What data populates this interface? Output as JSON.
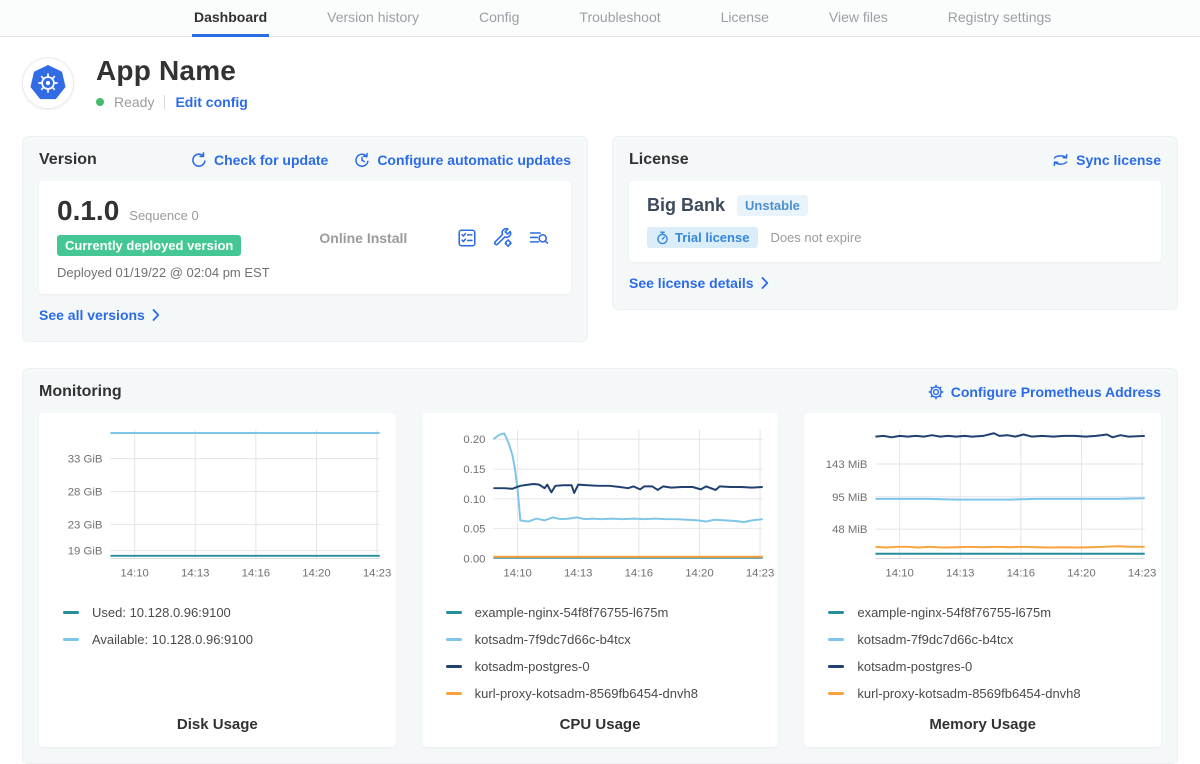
{
  "nav": {
    "tabs": [
      {
        "label": "Dashboard",
        "active": true
      },
      {
        "label": "Version history",
        "active": false
      },
      {
        "label": "Config",
        "active": false
      },
      {
        "label": "Troubleshoot",
        "active": false
      },
      {
        "label": "License",
        "active": false
      },
      {
        "label": "View files",
        "active": false
      },
      {
        "label": "Registry settings",
        "active": false
      }
    ]
  },
  "header": {
    "app_name": "App Name",
    "status": "Ready",
    "edit_config_label": "Edit config"
  },
  "version_card": {
    "title": "Version",
    "check_for_update_label": "Check for update",
    "configure_updates_label": "Configure automatic updates",
    "version_number": "0.1.0",
    "sequence_label": "Sequence 0",
    "deployed_badge": "Currently deployed version",
    "deployed_at": "Deployed 01/19/22 @ 02:04 pm EST",
    "install_type": "Online Install",
    "icons": [
      "preflight-checks-icon",
      "edit-config-icon",
      "view-logs-icon"
    ],
    "see_all_versions_label": "See all versions"
  },
  "license_card": {
    "title": "License",
    "sync_license_label": "Sync license",
    "customer_name": "Big Bank",
    "channel_badge": "Unstable",
    "license_type_badge": "Trial license",
    "expiry_text": "Does not expire",
    "see_details_label": "See license details"
  },
  "monitoring": {
    "title": "Monitoring",
    "configure_prometheus_label": "Configure Prometheus Address"
  },
  "colors": {
    "link-blue": "#2c6be6",
    "k8s-blue": "#326ce5",
    "status-green": "#44bb66",
    "badge-green": "#44c794",
    "series-teal": "#268e9e",
    "series-lightblue": "#7ec5e8",
    "series-navy": "#20406f",
    "series-orange": "#f9a13c"
  },
  "chart_data": [
    {
      "type": "line",
      "title": "Disk Usage",
      "ylim": [
        17.8,
        37.4
      ],
      "yticks": [
        {
          "value": 19,
          "label": "19 GiB"
        },
        {
          "value": 23,
          "label": "23 GiB"
        },
        {
          "value": 28,
          "label": "28 GiB"
        },
        {
          "value": 33,
          "label": "33 GiB"
        }
      ],
      "xticks": [
        {
          "pos": 0.09,
          "label": "14:10"
        },
        {
          "pos": 0.315,
          "label": "14:13"
        },
        {
          "pos": 0.54,
          "label": "14:16"
        },
        {
          "pos": 0.765,
          "label": "14:20"
        },
        {
          "pos": 0.99,
          "label": "14:23"
        }
      ],
      "series": [
        {
          "name": "Used: 10.128.0.96:9100",
          "color": "series-teal",
          "points": [
            [
              0,
              18.2
            ],
            [
              1,
              18.2
            ]
          ]
        },
        {
          "name": "Available: 10.128.0.96:9100",
          "color": "series-lightblue",
          "points": [
            [
              0,
              36.9
            ],
            [
              1,
              36.9
            ]
          ]
        }
      ]
    },
    {
      "type": "line",
      "title": "CPU Usage",
      "ylim": [
        0,
        0.216
      ],
      "yticks": [
        {
          "value": 0.0,
          "label": "0.00"
        },
        {
          "value": 0.05,
          "label": "0.05"
        },
        {
          "value": 0.1,
          "label": "0.10"
        },
        {
          "value": 0.15,
          "label": "0.15"
        },
        {
          "value": 0.2,
          "label": "0.20"
        }
      ],
      "xticks": [
        {
          "pos": 0.09,
          "label": "14:10"
        },
        {
          "pos": 0.315,
          "label": "14:13"
        },
        {
          "pos": 0.54,
          "label": "14:16"
        },
        {
          "pos": 0.765,
          "label": "14:20"
        },
        {
          "pos": 0.99,
          "label": "14:23"
        }
      ],
      "series": [
        {
          "name": "example-nginx-54f8f76755-l675m",
          "color": "series-teal",
          "points": [
            [
              0,
              0.0015
            ],
            [
              1,
              0.0015
            ]
          ]
        },
        {
          "name": "kotsadm-7f9dc7d66c-b4tcx",
          "color": "series-lightblue",
          "points": [
            [
              0,
              0.2
            ],
            [
              0.02,
              0.207
            ],
            [
              0.04,
              0.21
            ],
            [
              0.055,
              0.195
            ],
            [
              0.07,
              0.175
            ],
            [
              0.08,
              0.15
            ],
            [
              0.09,
              0.115
            ],
            [
              0.1,
              0.064
            ],
            [
              0.13,
              0.062
            ],
            [
              0.16,
              0.067
            ],
            [
              0.19,
              0.064
            ],
            [
              0.22,
              0.069
            ],
            [
              0.25,
              0.066
            ],
            [
              0.28,
              0.067
            ],
            [
              0.31,
              0.069
            ],
            [
              0.34,
              0.066
            ],
            [
              0.37,
              0.067
            ],
            [
              0.4,
              0.066
            ],
            [
              0.44,
              0.067
            ],
            [
              0.48,
              0.066
            ],
            [
              0.52,
              0.067
            ],
            [
              0.56,
              0.066
            ],
            [
              0.6,
              0.067
            ],
            [
              0.64,
              0.066
            ],
            [
              0.68,
              0.066
            ],
            [
              0.72,
              0.065
            ],
            [
              0.76,
              0.064
            ],
            [
              0.79,
              0.062
            ],
            [
              0.82,
              0.065
            ],
            [
              0.86,
              0.064
            ],
            [
              0.9,
              0.063
            ],
            [
              0.93,
              0.061
            ],
            [
              0.96,
              0.064
            ],
            [
              1,
              0.066
            ]
          ]
        },
        {
          "name": "kotsadm-postgres-0",
          "color": "series-navy",
          "points": [
            [
              0,
              0.118
            ],
            [
              0.04,
              0.118
            ],
            [
              0.07,
              0.117
            ],
            [
              0.1,
              0.122
            ],
            [
              0.13,
              0.124
            ],
            [
              0.15,
              0.125
            ],
            [
              0.17,
              0.124
            ],
            [
              0.19,
              0.118
            ],
            [
              0.2,
              0.124
            ],
            [
              0.215,
              0.111
            ],
            [
              0.23,
              0.122
            ],
            [
              0.26,
              0.123
            ],
            [
              0.29,
              0.123
            ],
            [
              0.3,
              0.11
            ],
            [
              0.315,
              0.124
            ],
            [
              0.35,
              0.123
            ],
            [
              0.39,
              0.122
            ],
            [
              0.43,
              0.122
            ],
            [
              0.47,
              0.12
            ],
            [
              0.5,
              0.118
            ],
            [
              0.52,
              0.121
            ],
            [
              0.545,
              0.116
            ],
            [
              0.56,
              0.121
            ],
            [
              0.59,
              0.121
            ],
            [
              0.61,
              0.115
            ],
            [
              0.63,
              0.121
            ],
            [
              0.66,
              0.119
            ],
            [
              0.7,
              0.12
            ],
            [
              0.74,
              0.12
            ],
            [
              0.77,
              0.116
            ],
            [
              0.79,
              0.121
            ],
            [
              0.825,
              0.115
            ],
            [
              0.84,
              0.121
            ],
            [
              0.88,
              0.12
            ],
            [
              0.92,
              0.12
            ],
            [
              0.96,
              0.119
            ],
            [
              1,
              0.12
            ]
          ]
        },
        {
          "name": "kurl-proxy-kotsadm-8569fb6454-dnvh8",
          "color": "series-orange",
          "points": [
            [
              0,
              0.003
            ],
            [
              1,
              0.003
            ]
          ]
        }
      ]
    },
    {
      "type": "line",
      "title": "Memory Usage",
      "ylim": [
        5,
        193
      ],
      "yticks": [
        {
          "value": 48,
          "label": "48 MiB"
        },
        {
          "value": 95,
          "label": "95 MiB"
        },
        {
          "value": 143,
          "label": "143 MiB"
        }
      ],
      "xticks": [
        {
          "pos": 0.09,
          "label": "14:10"
        },
        {
          "pos": 0.315,
          "label": "14:13"
        },
        {
          "pos": 0.54,
          "label": "14:16"
        },
        {
          "pos": 0.765,
          "label": "14:20"
        },
        {
          "pos": 0.99,
          "label": "14:23"
        }
      ],
      "series": [
        {
          "name": "example-nginx-54f8f76755-l675m",
          "color": "series-teal",
          "points": [
            [
              0,
              12
            ],
            [
              1,
              12
            ]
          ]
        },
        {
          "name": "kotsadm-7f9dc7d66c-b4tcx",
          "color": "series-lightblue",
          "points": [
            [
              0,
              92
            ],
            [
              0.1,
              92
            ],
            [
              0.2,
              92
            ],
            [
              0.3,
              91
            ],
            [
              0.4,
              91
            ],
            [
              0.5,
              91
            ],
            [
              0.6,
              92
            ],
            [
              0.7,
              92
            ],
            [
              0.8,
              92
            ],
            [
              0.9,
              92
            ],
            [
              1,
              93
            ]
          ]
        },
        {
          "name": "kotsadm-postgres-0",
          "color": "series-navy",
          "points": [
            [
              0,
              183
            ],
            [
              0.03,
              184
            ],
            [
              0.06,
              182
            ],
            [
              0.09,
              184
            ],
            [
              0.12,
              183
            ],
            [
              0.15,
              184
            ],
            [
              0.18,
              183
            ],
            [
              0.21,
              185
            ],
            [
              0.24,
              183
            ],
            [
              0.27,
              184
            ],
            [
              0.3,
              183
            ],
            [
              0.33,
              184
            ],
            [
              0.36,
              183
            ],
            [
              0.4,
              184
            ],
            [
              0.44,
              188
            ],
            [
              0.46,
              184
            ],
            [
              0.49,
              185
            ],
            [
              0.52,
              183
            ],
            [
              0.55,
              186
            ],
            [
              0.58,
              183
            ],
            [
              0.62,
              184
            ],
            [
              0.66,
              183
            ],
            [
              0.7,
              184
            ],
            [
              0.74,
              184
            ],
            [
              0.78,
              183
            ],
            [
              0.82,
              184
            ],
            [
              0.86,
              186
            ],
            [
              0.88,
              182
            ],
            [
              0.91,
              185
            ],
            [
              0.94,
              183
            ],
            [
              1,
              184
            ]
          ]
        },
        {
          "name": "kurl-proxy-kotsadm-8569fb6454-dnvh8",
          "color": "series-orange",
          "points": [
            [
              0,
              22
            ],
            [
              0.04,
              21
            ],
            [
              0.08,
              22
            ],
            [
              0.12,
              22
            ],
            [
              0.16,
              21
            ],
            [
              0.2,
              22
            ],
            [
              0.25,
              21
            ],
            [
              0.3,
              21.5
            ],
            [
              0.35,
              22
            ],
            [
              0.4,
              21.5
            ],
            [
              0.45,
              22
            ],
            [
              0.5,
              21.5
            ],
            [
              0.55,
              22
            ],
            [
              0.6,
              21.5
            ],
            [
              0.65,
              21
            ],
            [
              0.7,
              21.5
            ],
            [
              0.75,
              21
            ],
            [
              0.8,
              21.5
            ],
            [
              0.85,
              22
            ],
            [
              0.9,
              23
            ],
            [
              0.95,
              22
            ],
            [
              1,
              22
            ]
          ]
        }
      ]
    }
  ]
}
